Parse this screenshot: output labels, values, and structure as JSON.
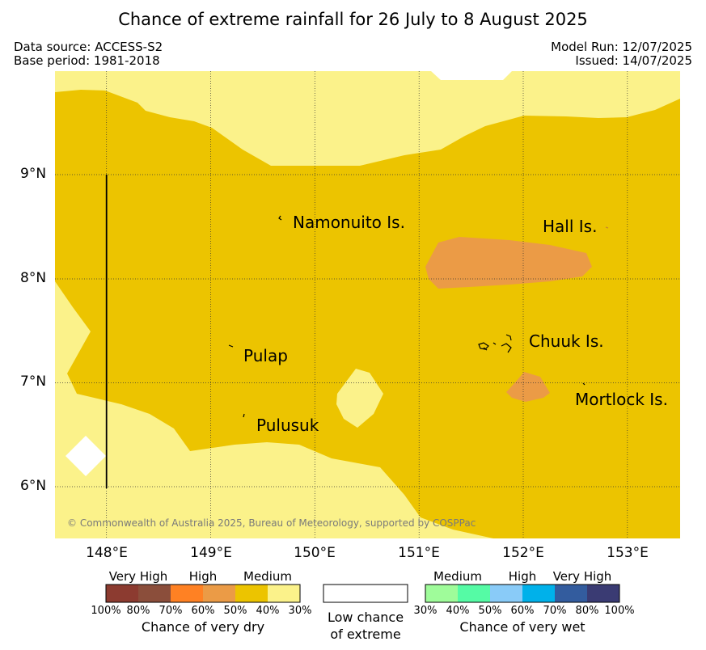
{
  "title": "Chance of extreme rainfall for 26 July to 8 August 2025",
  "meta": {
    "data_source": "Data source: ACCESS-S2",
    "base_period": "Base period: 1981-2018",
    "model_run": "Model Run: 12/07/2025",
    "issued": "Issued: 14/07/2025"
  },
  "map": {
    "lon_range": [
      147.5,
      153.5
    ],
    "lat_range": [
      5.5,
      10.0
    ],
    "lat_ticks": [
      {
        "value": 9,
        "label": "9°N"
      },
      {
        "value": 8,
        "label": "8°N"
      },
      {
        "value": 7,
        "label": "7°N"
      },
      {
        "value": 6,
        "label": "6°N"
      }
    ],
    "lon_ticks": [
      {
        "value": 148,
        "label": "148°E"
      },
      {
        "value": 149,
        "label": "149°E"
      },
      {
        "value": 150,
        "label": "150°E"
      },
      {
        "value": 151,
        "label": "151°E"
      },
      {
        "value": 152,
        "label": "152°E"
      },
      {
        "value": 153,
        "label": "153°E"
      }
    ],
    "places": [
      {
        "name": "Namonuito Is.",
        "lon": 149.67,
        "lat": 8.58
      },
      {
        "name": "Hall Is.",
        "lon": 152.8,
        "lat": 8.5
      },
      {
        "name": "Pulap",
        "lon": 149.2,
        "lat": 7.35
      },
      {
        "name": "Chuuk Is.",
        "lon": 151.8,
        "lat": 7.4
      },
      {
        "name": "Pulusuk",
        "lon": 149.3,
        "lat": 6.68
      },
      {
        "name": "Mortlock Is.",
        "lon": 152.6,
        "lat": 7.0
      }
    ],
    "copyright": "© Commonwealth of Australia 2025, Bureau of Meteorology, supported by COSPPac",
    "colors": {
      "dry_medium_40_50": "#ecc400",
      "dry_medium_30_40": "#fbf28a",
      "dry_high_50_60": "#eb9b46",
      "low_chance": "#ffffff"
    }
  },
  "legend": {
    "dry": {
      "categories": [
        {
          "label": "Very High"
        },
        {
          "label": "High"
        },
        {
          "label": "Medium"
        }
      ],
      "colors": [
        "#8c3b30",
        "#8b4e3b",
        "#ff8123",
        "#eb9b46",
        "#ecc400",
        "#fbf28a"
      ],
      "ticks": [
        "100%",
        "80%",
        "70%",
        "60%",
        "50%",
        "40%",
        "30%"
      ],
      "caption": "Chance of very dry"
    },
    "low": {
      "color": "#ffffff",
      "caption_line1": "Low chance",
      "caption_line2": "of extreme"
    },
    "wet": {
      "categories": [
        {
          "label": "Medium"
        },
        {
          "label": "High"
        },
        {
          "label": "Very High"
        }
      ],
      "colors": [
        "#9ffc9a",
        "#55fba5",
        "#89cbf8",
        "#00b1ea",
        "#335c9e",
        "#3a3b73"
      ],
      "ticks": [
        "30%",
        "40%",
        "50%",
        "60%",
        "70%",
        "80%",
        "100%"
      ],
      "caption": "Chance of very wet"
    }
  }
}
